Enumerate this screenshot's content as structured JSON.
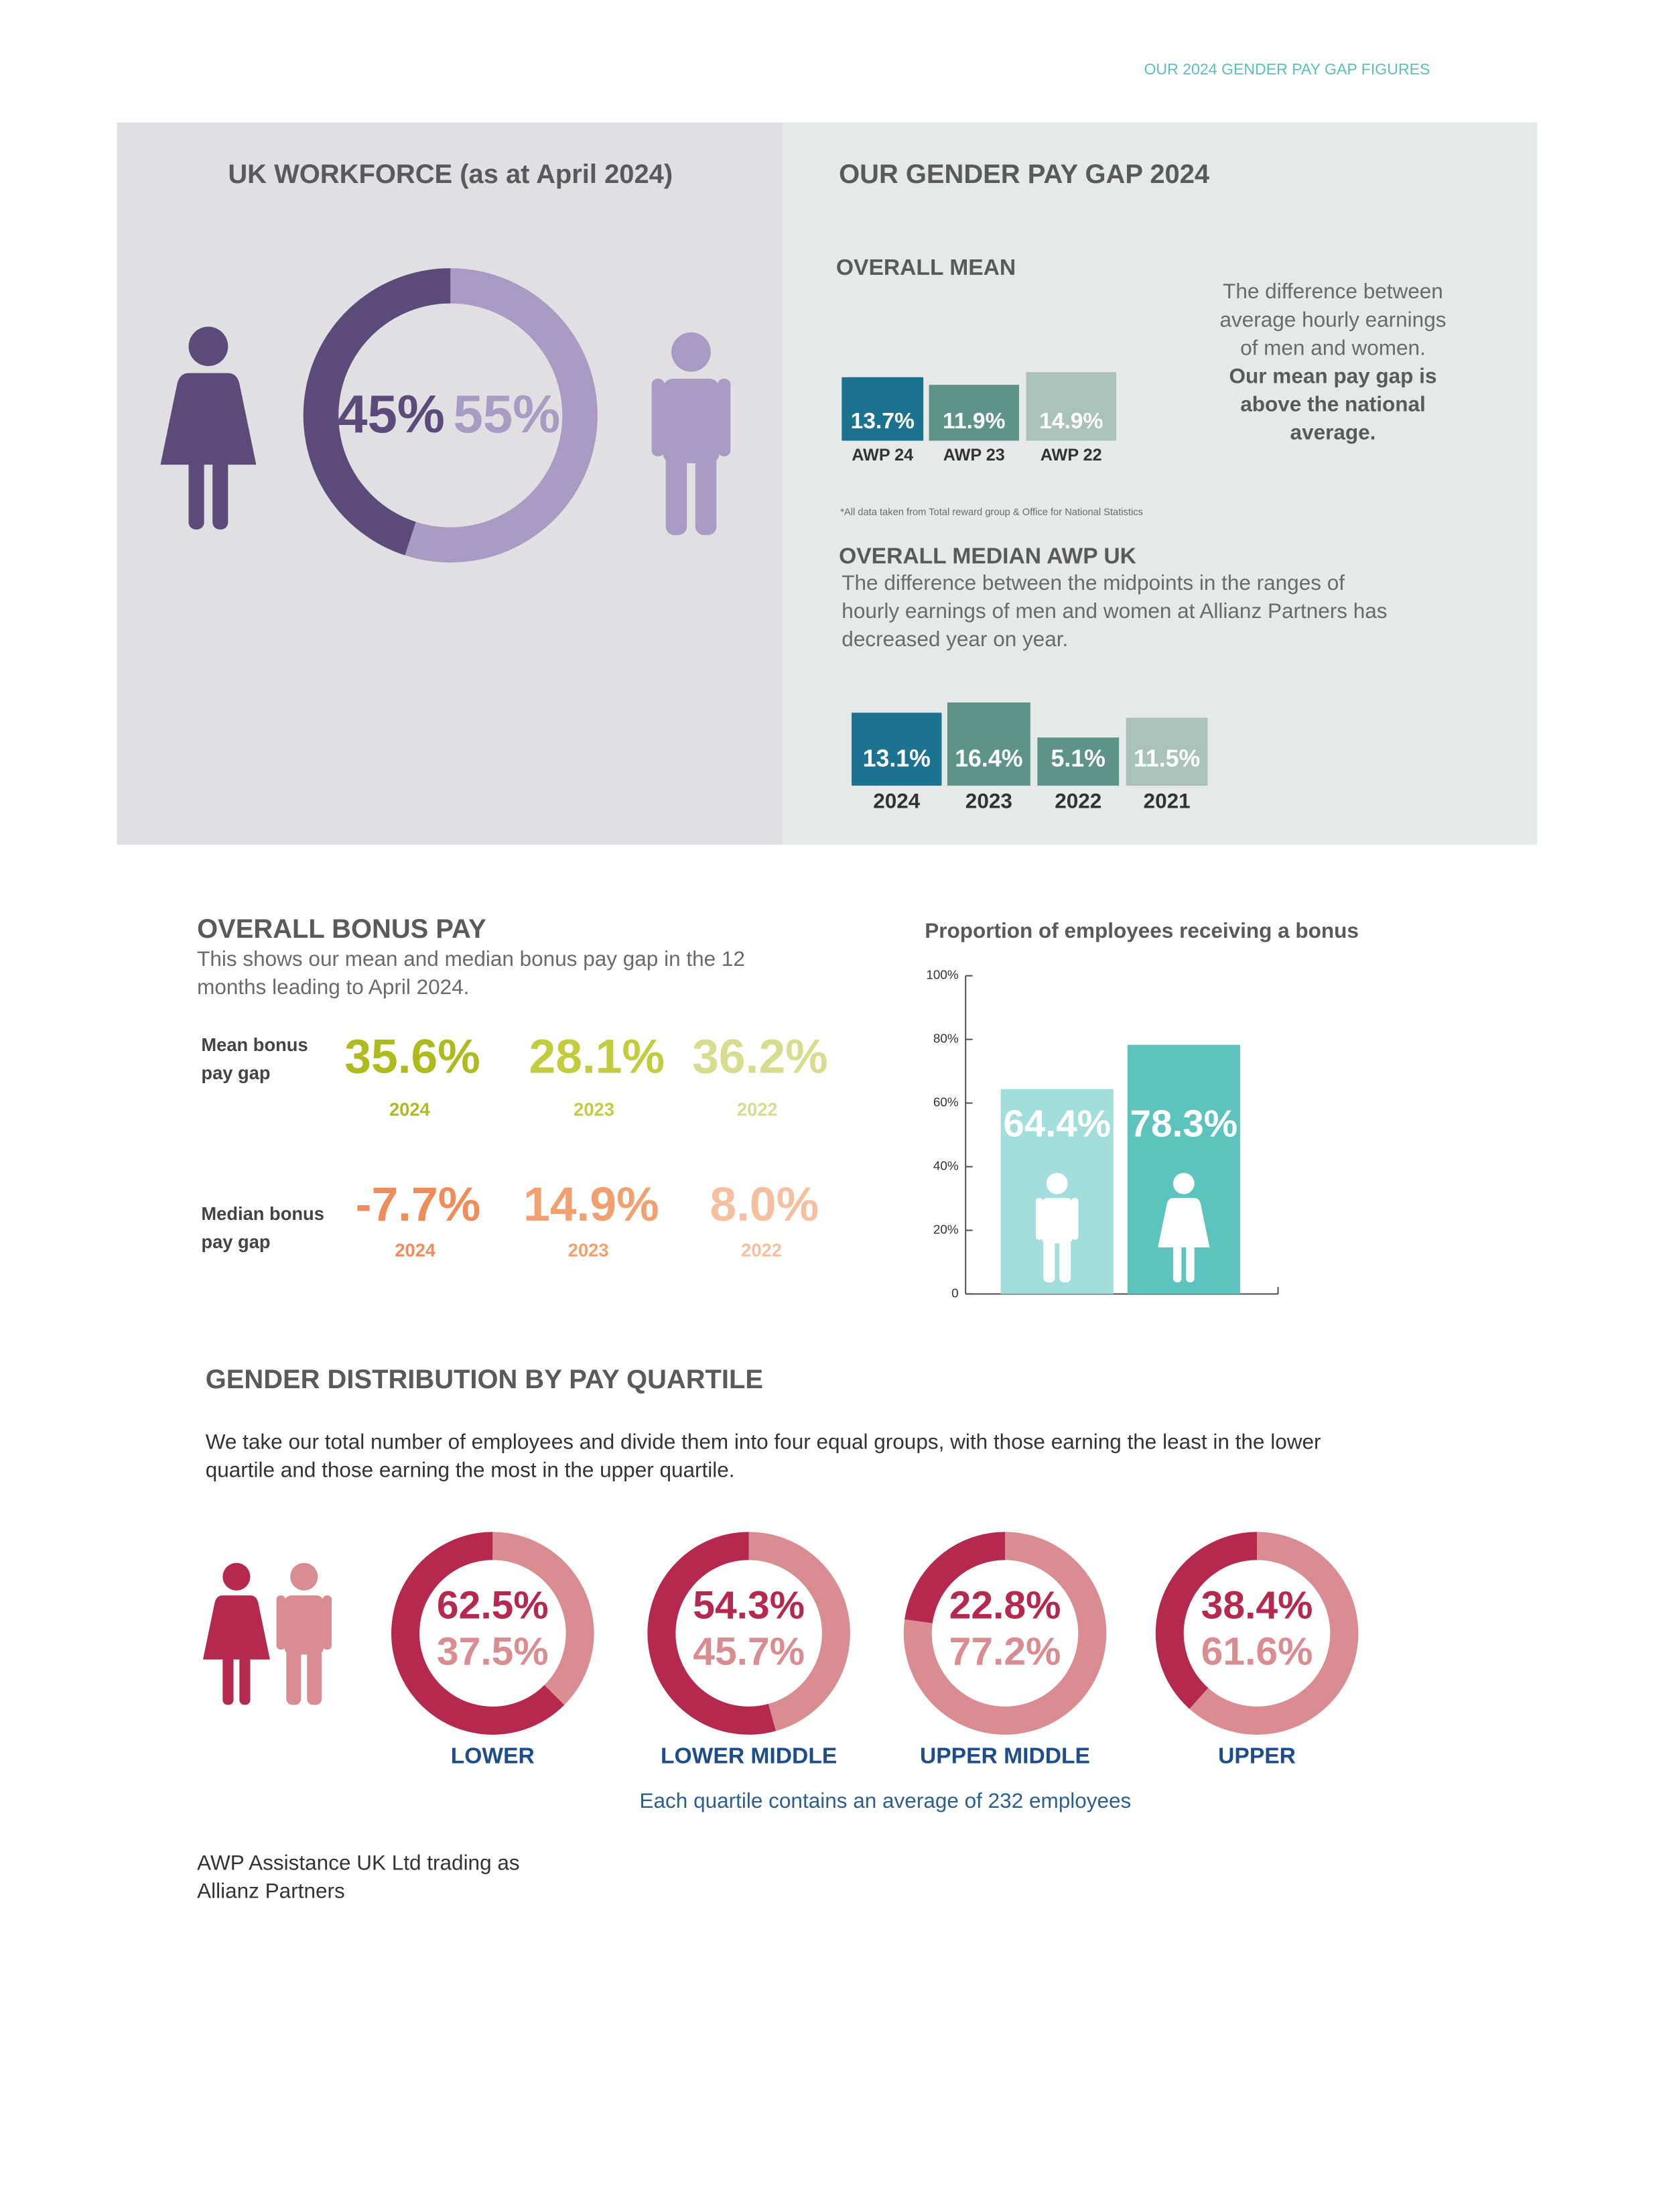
{
  "header": {
    "title": "OUR 2024 GENDER PAY GAP FIGURES"
  },
  "workforce": {
    "title": "UK WORKFORCE (as at April 2024)",
    "values": [
      45,
      55
    ],
    "value_labels": [
      "45%",
      "55%"
    ],
    "colors": [
      "#5b4a7a",
      "#a89bc4"
    ]
  },
  "pay_gap": {
    "title": "OUR GENDER PAY GAP 2024",
    "mean": {
      "title": "OVERALL MEAN",
      "description": [
        "The difference between",
        "average hourly earnings",
        "of men and women."
      ],
      "emphasis": [
        "Our mean pay gap is",
        "above the national",
        "average."
      ],
      "categories": [
        "AWP 24",
        "AWP 23",
        "AWP 22"
      ],
      "values": [
        13.7,
        11.9,
        14.9
      ],
      "value_labels": [
        "13.7%",
        "11.9%",
        "14.9%"
      ],
      "colors": [
        "#1c7390",
        "#5e9488",
        "#a9c3bb"
      ],
      "footnote": "*All data taken from Total reward group & Office for National Statistics"
    },
    "median": {
      "title": "OVERALL MEDIAN AWP UK",
      "description": [
        "The difference between the midpoints in the ranges of",
        "hourly earnings of men and women at Allianz Partners has",
        "decreased year on year."
      ],
      "categories": [
        "2024",
        "2023",
        "2022",
        "2021"
      ],
      "values": [
        13.1,
        16.4,
        5.1,
        11.5
      ],
      "value_labels": [
        "13.1%",
        "16.4%",
        "5.1%",
        "11.5%"
      ],
      "colors": [
        "#1c7390",
        "#5e9488",
        "#5e9488",
        "#a9c3bb"
      ]
    }
  },
  "bonus": {
    "title": "OVERALL BONUS PAY",
    "description": [
      "This shows our mean and median bonus pay gap in the 12",
      "months leading to April 2024."
    ],
    "mean": {
      "label": [
        "Mean bonus",
        "pay gap"
      ],
      "values": [
        "35.6%",
        "28.1%",
        "36.2%"
      ],
      "years": [
        "2024",
        "2023",
        "2022"
      ],
      "colors": [
        "#afba1f",
        "#c3cc3c",
        "#d8dc8e"
      ]
    },
    "median": {
      "label": [
        "Median bonus",
        "pay gap"
      ],
      "values": [
        "-7.7%",
        "14.9%",
        "8.0%"
      ],
      "years": [
        "2024",
        "2023",
        "2022"
      ],
      "colors": [
        "#ee8c5a",
        "#f2a070",
        "#f6c0a0"
      ]
    }
  },
  "chart_data": {
    "type": "bar",
    "title": "Proportion of employees receiving a bonus",
    "values": [
      64.4,
      78.3
    ],
    "value_labels": [
      "64.4%",
      "78.3%"
    ],
    "colors": [
      "#a2dfdc",
      "#5cc3bd"
    ],
    "ylim": [
      0,
      100
    ],
    "yticks": [
      0,
      {
        "value": 20,
        "label": "20%"
      },
      {
        "value": 40,
        "label": "40%"
      },
      {
        "value": 60,
        "label": "60%"
      },
      {
        "value": 80,
        "label": "80%"
      },
      {
        "value": 100,
        "label": "100%"
      }
    ]
  },
  "quartiles": {
    "title": "GENDER DISTRIBUTION BY PAY QUARTILE",
    "description": [
      "We take our total number of employees and divide them into four equal groups, with those earning the least in the lower",
      "quartile and those earning the most in the upper quartile."
    ],
    "categories": [
      "LOWER",
      "LOWER MIDDLE",
      "UPPER MIDDLE",
      "UPPER"
    ],
    "women": [
      62.5,
      54.3,
      22.8,
      38.4
    ],
    "women_labels": [
      "62.5%",
      "54.3%",
      "22.8%",
      "38.4%"
    ],
    "men": [
      37.5,
      45.7,
      77.2,
      61.6
    ],
    "men_labels": [
      "37.5%",
      "45.7%",
      "77.2%",
      "61.6%"
    ],
    "women_color": "#b5294f",
    "men_color": "#d98d91",
    "note": "Each quartile contains an average of 232 employees"
  },
  "footer": {
    "lines": [
      "AWP Assistance UK Ltd trading as",
      "Allianz Partners"
    ]
  }
}
